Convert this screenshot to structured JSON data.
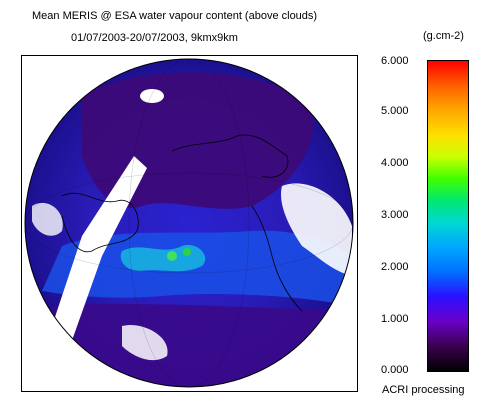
{
  "title": "Mean MERIS @ ESA water vapour content (above clouds)",
  "subtitle": "01/07/2003-20/07/2003, 9kmx9km",
  "colorbar": {
    "unit": "(g.cm-2)",
    "ticks": [
      "6.000",
      "5.000",
      "4.000",
      "3.000",
      "2.000",
      "1.000",
      "0.000"
    ],
    "min": 0,
    "max": 6,
    "colors": [
      "#000000",
      "#6a00c8",
      "#2a10ff",
      "#00a8ff",
      "#00e870",
      "#c8ff00",
      "#ffa800",
      "#ff0000"
    ]
  },
  "footer": "ACRI processing",
  "map": {
    "projection": "orthographic",
    "colors": {
      "low": "#3a0a8a",
      "mid": "#2424d8",
      "high": "#10a8e0",
      "peak": "#30d040",
      "cloud": "#ffffff",
      "coast": "#000000"
    }
  }
}
